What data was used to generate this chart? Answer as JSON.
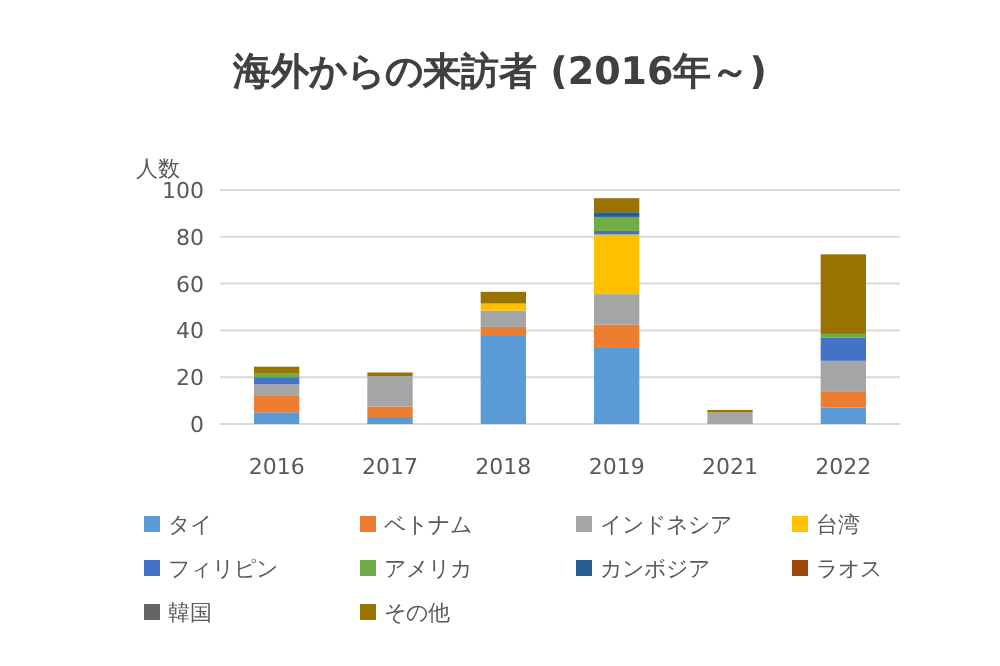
{
  "chart_data": {
    "type": "bar",
    "stacked": true,
    "title": "海外からの来訪者 (2016年～)",
    "ylabel": "人数",
    "categories": [
      "2016",
      "2017",
      "2018",
      "2019",
      "2021",
      "2022"
    ],
    "series": [
      {
        "name": "タイ",
        "color": "#5b9bd5",
        "values": [
          5,
          3,
          38,
          32.5,
          0,
          7
        ]
      },
      {
        "name": "ベトナム",
        "color": "#ed7d31",
        "values": [
          7,
          4.5,
          3.5,
          10,
          0,
          7
        ]
      },
      {
        "name": "インドネシア",
        "color": "#a5a5a5",
        "values": [
          5,
          13,
          7,
          13,
          5,
          13
        ]
      },
      {
        "name": "台湾",
        "color": "#ffc000",
        "values": [
          0,
          0,
          3,
          25.5,
          0,
          0
        ]
      },
      {
        "name": "フィリピン",
        "color": "#4472c4",
        "values": [
          3,
          0,
          0,
          1.5,
          0,
          10
        ]
      },
      {
        "name": "アメリカ",
        "color": "#70ad47",
        "values": [
          1.5,
          0,
          0,
          6,
          0,
          1.5
        ]
      },
      {
        "name": "カンボジア",
        "color": "#255e91",
        "values": [
          0,
          0,
          0,
          2,
          0,
          0
        ]
      },
      {
        "name": "ラオス",
        "color": "#9e480e",
        "values": [
          0,
          0,
          0,
          0,
          0,
          0
        ]
      },
      {
        "name": "韓国",
        "color": "#636363",
        "values": [
          0,
          0,
          0,
          0,
          0,
          0
        ]
      },
      {
        "name": "その他",
        "color": "#997300",
        "values": [
          3,
          1.5,
          5,
          6,
          1,
          34
        ]
      }
    ],
    "ylim": [
      0,
      100
    ],
    "yticks": [
      0,
      20,
      40,
      60,
      80,
      100
    ],
    "grid": "y",
    "legend": "bottom"
  }
}
